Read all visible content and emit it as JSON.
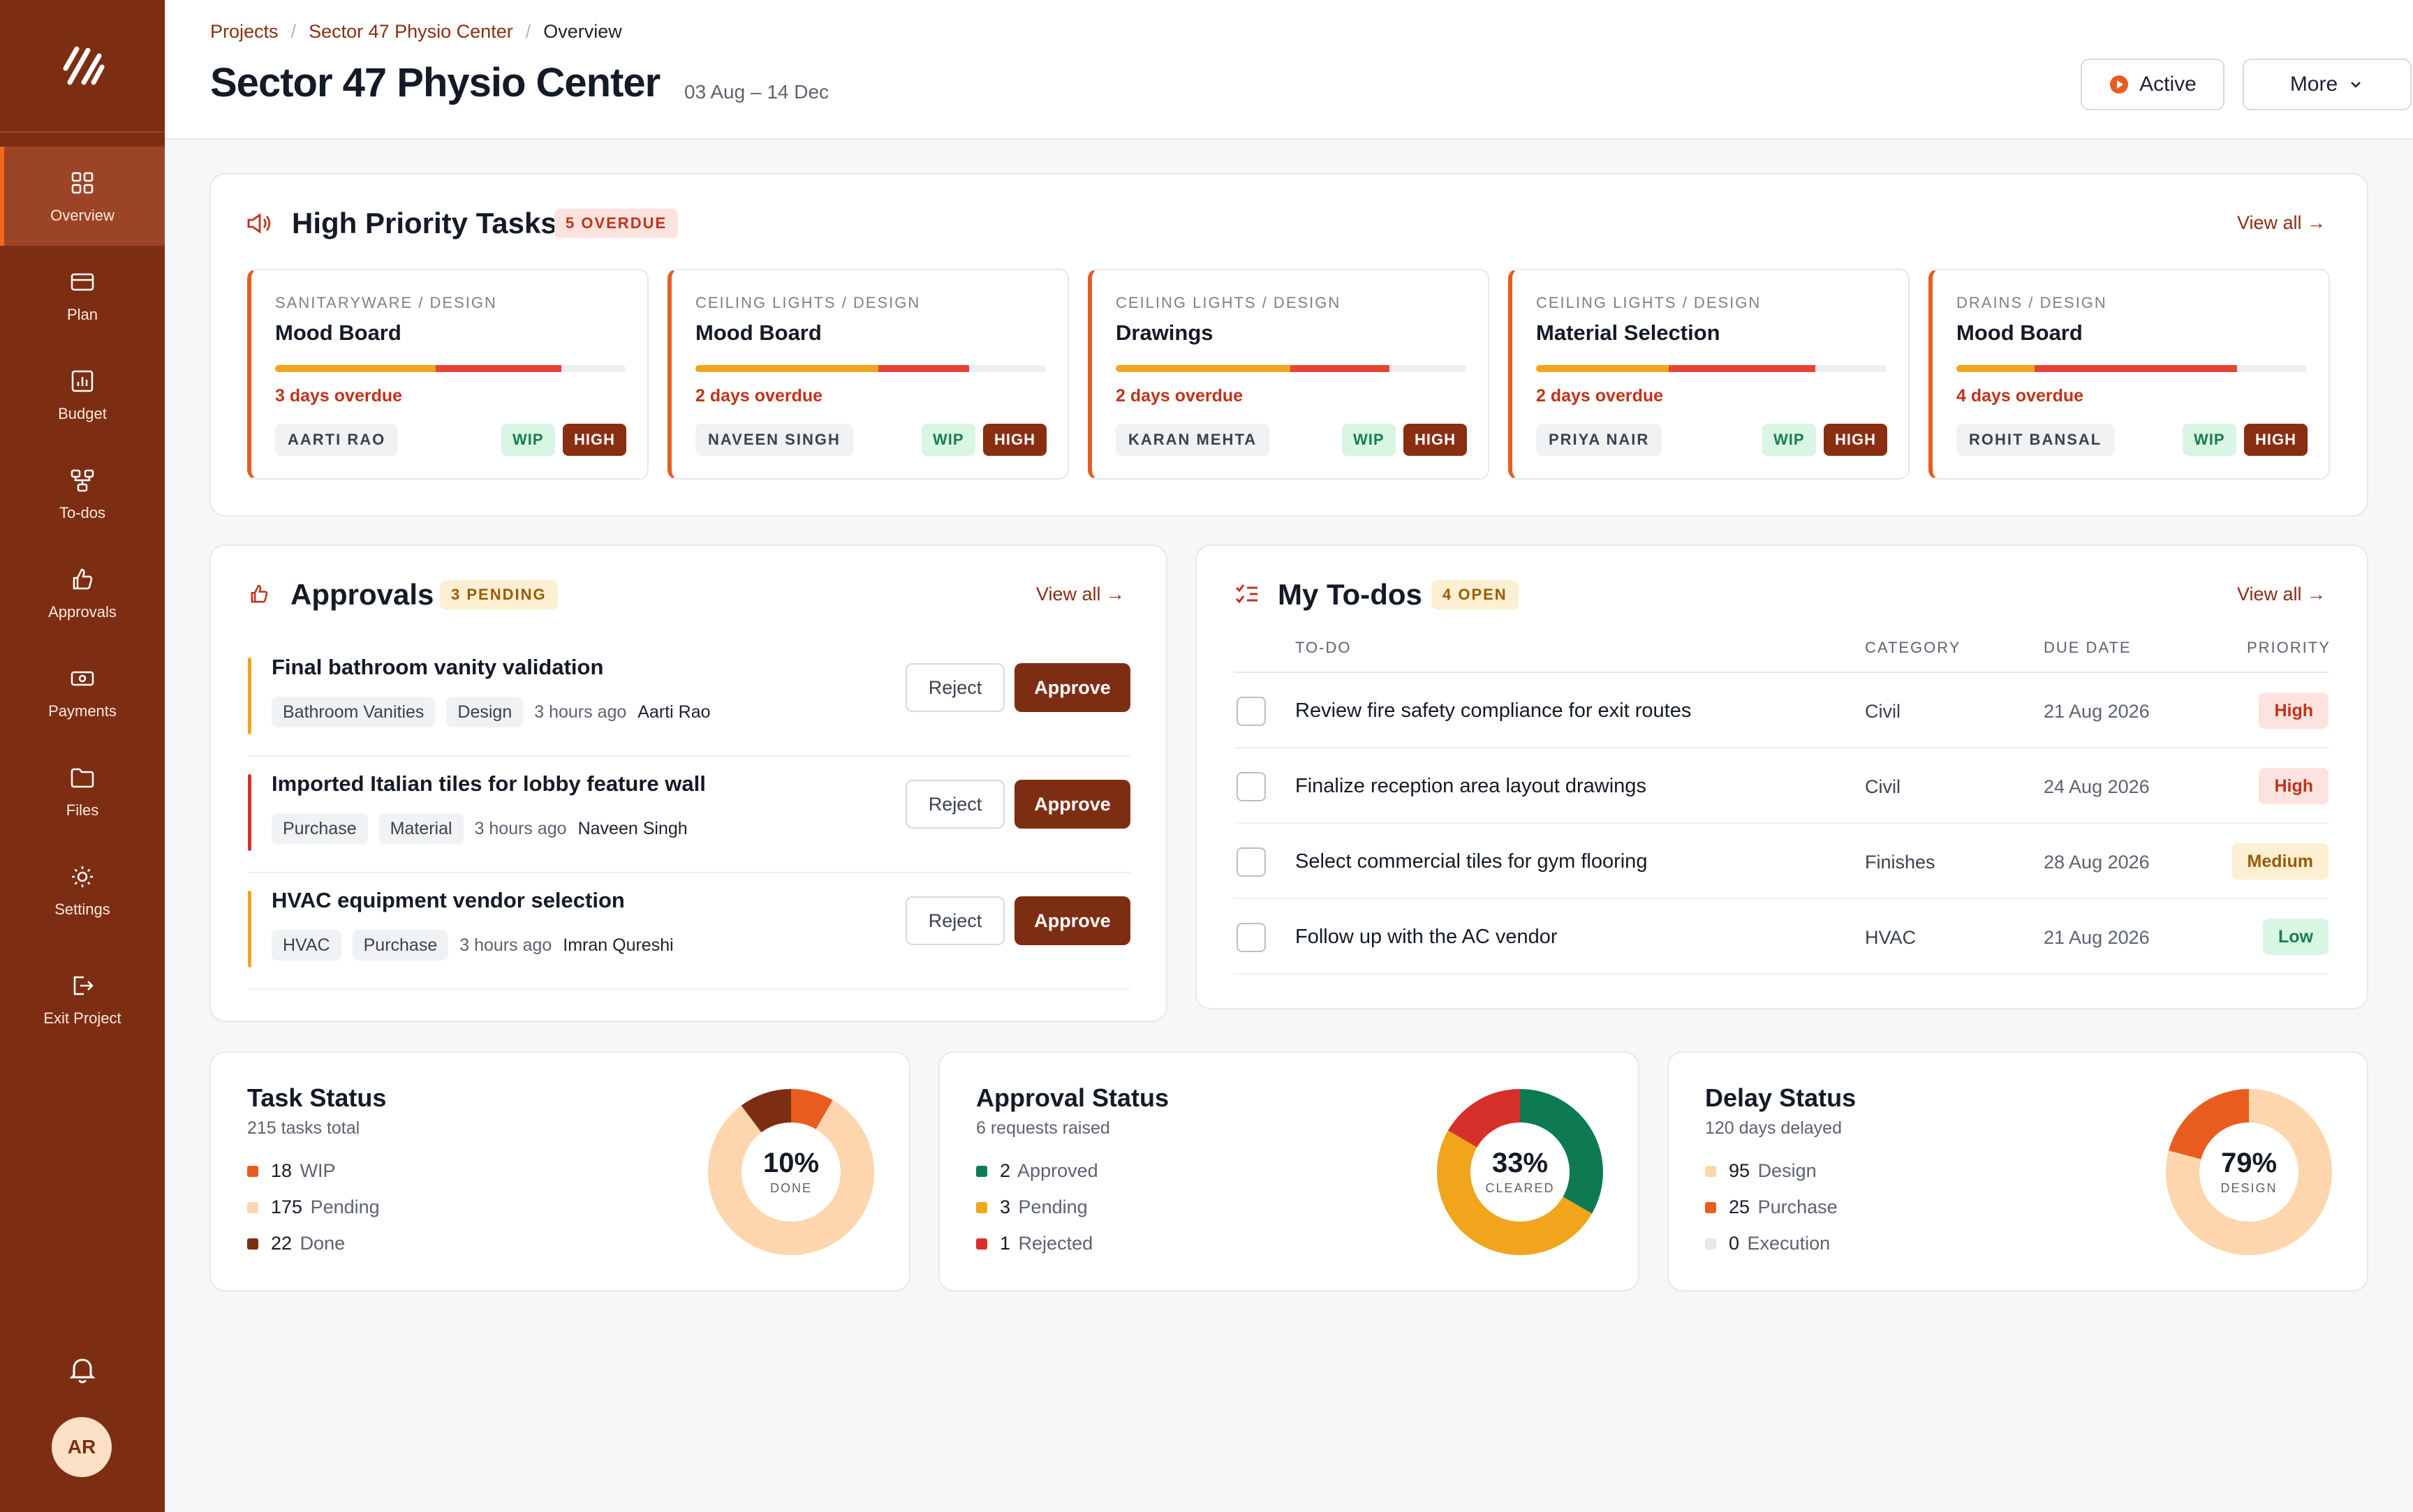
{
  "nav": [
    {
      "label": "Overview",
      "icon": "grid-icon"
    },
    {
      "label": "Plan",
      "icon": "card-icon"
    },
    {
      "label": "Budget",
      "icon": "chart-icon"
    },
    {
      "label": "To-dos",
      "icon": "flow-icon"
    },
    {
      "label": "Approvals",
      "icon": "thumbs-up-icon"
    },
    {
      "label": "Payments",
      "icon": "cash-icon"
    },
    {
      "label": "Files",
      "icon": "folder-icon"
    },
    {
      "label": "Settings",
      "icon": "gear-icon"
    },
    {
      "label": "Exit Project",
      "icon": "exit-icon"
    }
  ],
  "user": {
    "initials": "AR"
  },
  "breadcrumb": {
    "root": "Projects",
    "project": "Sector 47 Physio Center",
    "current": "Overview",
    "sep": "/"
  },
  "header": {
    "title": "Sector 47 Physio Center",
    "dates": "03 Aug – 14 Dec",
    "status": "Active",
    "more": "More"
  },
  "priority": {
    "title": "High Priority Tasks",
    "badge": "5 OVERDUE",
    "view_all": "View all →",
    "tasks": [
      {
        "crumb": "SANITARYWARE / DESIGN",
        "name": "Mood Board",
        "overdue": "3 days overdue",
        "person": "AARTI RAO",
        "wip": "WIP",
        "high": "HIGH"
      },
      {
        "crumb": "CEILING LIGHTS / DESIGN",
        "name": "Mood Board",
        "overdue": "2 days overdue",
        "person": "NAVEEN SINGH",
        "wip": "WIP",
        "high": "HIGH"
      },
      {
        "crumb": "CEILING LIGHTS / DESIGN",
        "name": "Drawings",
        "overdue": "2 days overdue",
        "person": "KARAN MEHTA",
        "wip": "WIP",
        "high": "HIGH"
      },
      {
        "crumb": "CEILING LIGHTS / DESIGN",
        "name": "Material Selection",
        "overdue": "2 days overdue",
        "person": "PRIYA NAIR",
        "wip": "WIP",
        "high": "HIGH"
      },
      {
        "crumb": "DRAINS / DESIGN",
        "name": "Mood Board",
        "overdue": "4 days overdue",
        "person": "ROHIT BANSAL",
        "wip": "WIP",
        "high": "HIGH"
      }
    ]
  },
  "approvals": {
    "title": "Approvals",
    "badge": "3 PENDING",
    "view_all": "View all →",
    "reject": "Reject",
    "approve": "Approve",
    "items": [
      {
        "title": "Final bathroom vanity validation",
        "tags": [
          "Bathroom Vanities",
          "Design"
        ],
        "time": "3 hours ago",
        "who": "Aarti Rao",
        "color": "#f0a51c"
      },
      {
        "title": "Imported Italian tiles for lobby feature wall",
        "tags": [
          "Purchase",
          "Material"
        ],
        "time": "3 hours ago",
        "who": "Naveen Singh",
        "color": "#d6302a"
      },
      {
        "title": "HVAC equipment vendor selection",
        "tags": [
          "HVAC",
          "Purchase"
        ],
        "time": "3 hours ago",
        "who": "Imran Qureshi",
        "color": "#f0a51c"
      }
    ]
  },
  "todos": {
    "title": "My To-dos",
    "badge": "4 OPEN",
    "view_all": "View all →",
    "headers": {
      "todo": "TO-DO",
      "category": "CATEGORY",
      "due": "DUE DATE",
      "priority": "PRIORITY"
    },
    "rows": [
      {
        "title": "Review fire safety compliance for exit routes",
        "category": "Civil",
        "due": "21 Aug 2026",
        "priority": "High"
      },
      {
        "title": "Finalize reception area layout drawings",
        "category": "Civil",
        "due": "24 Aug 2026",
        "priority": "High"
      },
      {
        "title": "Select commercial tiles for gym flooring",
        "category": "Finishes",
        "due": "28 Aug 2026",
        "priority": "Medium"
      },
      {
        "title": "Follow up with the AC vendor",
        "category": "HVAC",
        "due": "21 Aug 2026",
        "priority": "Low"
      }
    ]
  },
  "stats": [
    {
      "title": "Task Status",
      "sub": "215 tasks total",
      "percent": "10%",
      "center_label": "DONE",
      "legend": [
        {
          "n": "18",
          "label": "WIP",
          "color": "#e85d1f"
        },
        {
          "n": "175",
          "label": "Pending",
          "color": "#fdd6ad"
        },
        {
          "n": "22",
          "label": "Done",
          "color": "#7d2e12"
        }
      ]
    },
    {
      "title": "Approval Status",
      "sub": "6 requests raised",
      "percent": "33%",
      "center_label": "CLEARED",
      "legend": [
        {
          "n": "2",
          "label": "Approved",
          "color": "#0d7a52"
        },
        {
          "n": "3",
          "label": "Pending",
          "color": "#f0a51c"
        },
        {
          "n": "1",
          "label": "Rejected",
          "color": "#d6302a"
        }
      ]
    },
    {
      "title": "Delay Status",
      "sub": "120 days delayed",
      "percent": "79%",
      "center_label": "DESIGN",
      "legend": [
        {
          "n": "95",
          "label": "Design",
          "color": "#fdd6ad"
        },
        {
          "n": "25",
          "label": "Purchase",
          "color": "#e85d1f"
        },
        {
          "n": "0",
          "label": "Execution",
          "color": "#e6e8ec"
        }
      ]
    }
  ]
}
